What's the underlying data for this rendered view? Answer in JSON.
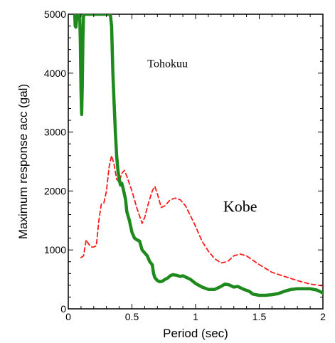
{
  "chart_data": {
    "type": "line",
    "title": "",
    "xlabel": "Period  (sec)",
    "ylabel": "Maximum response acc (gal)",
    "xlim": [
      0,
      2
    ],
    "ylim": [
      0,
      5000
    ],
    "x_ticks": [
      0,
      0.5,
      1,
      1.5,
      2
    ],
    "x_tick_labels": [
      "0",
      "0.5",
      "1",
      "1.5",
      "2"
    ],
    "y_ticks": [
      0,
      1000,
      2000,
      3000,
      4000,
      5000
    ],
    "y_tick_labels": [
      "0",
      "1000",
      "2000",
      "3000",
      "4000",
      "5000"
    ],
    "grid": false,
    "legend": "none",
    "annotations": [
      {
        "text": "Tohokuu",
        "x": 0.78,
        "y": 4100,
        "size": "small",
        "series": "tohoku"
      },
      {
        "text": "Kobe",
        "x": 1.35,
        "y": 1650,
        "size": "large",
        "series": "kobe"
      }
    ],
    "series": [
      {
        "key": "tohoku",
        "style": "solid",
        "color": "#1e8a1e",
        "points": [
          [
            0.05,
            5000
          ],
          [
            0.055,
            4800
          ],
          [
            0.06,
            4780
          ],
          [
            0.065,
            4900
          ],
          [
            0.07,
            5000
          ],
          [
            0.09,
            5000
          ],
          [
            0.095,
            4500
          ],
          [
            0.1,
            3700
          ],
          [
            0.105,
            3300
          ],
          [
            0.11,
            3800
          ],
          [
            0.115,
            4600
          ],
          [
            0.12,
            5000
          ],
          [
            0.33,
            5000
          ],
          [
            0.34,
            4800
          ],
          [
            0.35,
            4000
          ],
          [
            0.36,
            3500
          ],
          [
            0.37,
            3000
          ],
          [
            0.38,
            2600
          ],
          [
            0.39,
            2350
          ],
          [
            0.4,
            2200
          ],
          [
            0.41,
            2100
          ],
          [
            0.42,
            2130
          ],
          [
            0.43,
            2050
          ],
          [
            0.44,
            1950
          ],
          [
            0.45,
            1850
          ],
          [
            0.46,
            1650
          ],
          [
            0.48,
            1500
          ],
          [
            0.5,
            1300
          ],
          [
            0.52,
            1200
          ],
          [
            0.54,
            1170
          ],
          [
            0.56,
            1150
          ],
          [
            0.58,
            1000
          ],
          [
            0.6,
            950
          ],
          [
            0.62,
            900
          ],
          [
            0.64,
            800
          ],
          [
            0.66,
            750
          ],
          [
            0.67,
            600
          ],
          [
            0.68,
            530
          ],
          [
            0.7,
            480
          ],
          [
            0.72,
            460
          ],
          [
            0.74,
            470
          ],
          [
            0.76,
            500
          ],
          [
            0.78,
            520
          ],
          [
            0.8,
            560
          ],
          [
            0.82,
            580
          ],
          [
            0.85,
            570
          ],
          [
            0.88,
            550
          ],
          [
            0.9,
            560
          ],
          [
            0.93,
            530
          ],
          [
            0.96,
            500
          ],
          [
            1.0,
            430
          ],
          [
            1.05,
            370
          ],
          [
            1.1,
            330
          ],
          [
            1.15,
            330
          ],
          [
            1.2,
            380
          ],
          [
            1.23,
            420
          ],
          [
            1.26,
            410
          ],
          [
            1.3,
            370
          ],
          [
            1.33,
            380
          ],
          [
            1.38,
            330
          ],
          [
            1.42,
            300
          ],
          [
            1.45,
            250
          ],
          [
            1.5,
            230
          ],
          [
            1.55,
            230
          ],
          [
            1.6,
            240
          ],
          [
            1.65,
            260
          ],
          [
            1.7,
            300
          ],
          [
            1.75,
            330
          ],
          [
            1.8,
            340
          ],
          [
            1.85,
            340
          ],
          [
            1.9,
            340
          ],
          [
            1.95,
            320
          ],
          [
            2.0,
            270
          ]
        ]
      },
      {
        "key": "kobe",
        "style": "dashed",
        "color": "#ff1a1a",
        "points": [
          [
            0.1,
            870
          ],
          [
            0.12,
            900
          ],
          [
            0.14,
            1170
          ],
          [
            0.16,
            1100
          ],
          [
            0.18,
            1050
          ],
          [
            0.2,
            1050
          ],
          [
            0.22,
            1070
          ],
          [
            0.24,
            1500
          ],
          [
            0.26,
            1780
          ],
          [
            0.28,
            1800
          ],
          [
            0.3,
            2000
          ],
          [
            0.32,
            2400
          ],
          [
            0.34,
            2600
          ],
          [
            0.36,
            2450
          ],
          [
            0.38,
            2200
          ],
          [
            0.4,
            2150
          ],
          [
            0.42,
            2300
          ],
          [
            0.44,
            2350
          ],
          [
            0.46,
            2250
          ],
          [
            0.5,
            2000
          ],
          [
            0.54,
            1700
          ],
          [
            0.58,
            1450
          ],
          [
            0.6,
            1550
          ],
          [
            0.63,
            1800
          ],
          [
            0.66,
            2000
          ],
          [
            0.68,
            2080
          ],
          [
            0.7,
            1950
          ],
          [
            0.73,
            1720
          ],
          [
            0.76,
            1750
          ],
          [
            0.8,
            1850
          ],
          [
            0.84,
            1880
          ],
          [
            0.88,
            1850
          ],
          [
            0.92,
            1750
          ],
          [
            0.96,
            1580
          ],
          [
            1.0,
            1400
          ],
          [
            1.05,
            1150
          ],
          [
            1.1,
            980
          ],
          [
            1.15,
            850
          ],
          [
            1.2,
            780
          ],
          [
            1.25,
            800
          ],
          [
            1.3,
            900
          ],
          [
            1.35,
            930
          ],
          [
            1.4,
            900
          ],
          [
            1.5,
            750
          ],
          [
            1.6,
            620
          ],
          [
            1.7,
            550
          ],
          [
            1.8,
            480
          ],
          [
            1.9,
            420
          ],
          [
            2.0,
            390
          ]
        ]
      }
    ]
  }
}
